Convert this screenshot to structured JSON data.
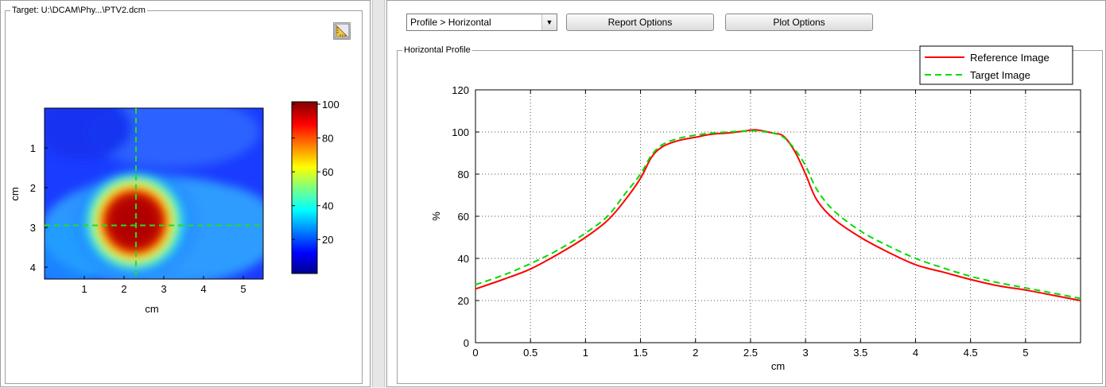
{
  "left_panel": {
    "group_title": "Target: U:\\DCAM\\Phy...\\PTV2.dcm",
    "tool_icon": "ruler-triangle-icon",
    "heatmap": {
      "xlabel": "cm",
      "ylabel": "cm",
      "x_ticks": [
        "1",
        "2",
        "3",
        "4",
        "5"
      ],
      "y_ticks": [
        "1",
        "2",
        "3",
        "4"
      ],
      "colorbar_ticks": [
        "100",
        "80",
        "60",
        "40",
        "20"
      ],
      "crosshair_x_cm": 2.3,
      "crosshair_y_cm": 2.95
    }
  },
  "right_panel": {
    "profile_select": {
      "value": "Profile > Horizontal"
    },
    "report_options_label": "Report Options",
    "plot_options_label": "Plot Options",
    "group_title": "Horizontal Profile"
  },
  "chart_data": {
    "type": "line",
    "xlabel": "cm",
    "ylabel": "%",
    "xlim": [
      0,
      5.5
    ],
    "ylim": [
      0,
      120
    ],
    "x_ticks": [
      "0",
      "0.5",
      "1",
      "1.5",
      "2",
      "2.5",
      "3",
      "3.5",
      "4",
      "4.5",
      "5"
    ],
    "y_ticks": [
      "0",
      "20",
      "40",
      "60",
      "80",
      "100",
      "120"
    ],
    "grid": true,
    "legend": "top-right",
    "colors": {
      "reference": "#ff0000",
      "target": "#00dd00"
    },
    "series": [
      {
        "name": "Reference Image",
        "style": "solid",
        "x": [
          0,
          0.25,
          0.5,
          0.75,
          1.0,
          1.2,
          1.35,
          1.5,
          1.6,
          1.7,
          1.85,
          2.0,
          2.15,
          2.3,
          2.45,
          2.55,
          2.7,
          2.8,
          2.9,
          3.0,
          3.1,
          3.25,
          3.5,
          3.75,
          4.0,
          4.25,
          4.5,
          4.75,
          5.0,
          5.25,
          5.5
        ],
        "values": [
          25.5,
          30,
          35,
          42,
          50,
          58,
          67,
          78,
          88,
          93,
          96,
          97.5,
          99,
          99.5,
          100.5,
          101,
          99.5,
          98,
          91,
          80,
          68,
          59,
          50,
          43,
          37,
          33.5,
          30,
          27,
          25,
          22.5,
          20
        ]
      },
      {
        "name": "Target Image",
        "style": "dashed",
        "x": [
          0,
          0.25,
          0.5,
          0.75,
          1.0,
          1.2,
          1.35,
          1.5,
          1.6,
          1.7,
          1.85,
          2.0,
          2.15,
          2.3,
          2.45,
          2.55,
          2.7,
          2.8,
          2.9,
          3.0,
          3.1,
          3.25,
          3.5,
          3.75,
          4.0,
          4.25,
          4.5,
          4.75,
          5.0,
          5.25,
          5.5
        ],
        "values": [
          27.5,
          32,
          37.5,
          44,
          52,
          60,
          70,
          80,
          89,
          94,
          97,
          98.5,
          99.5,
          100,
          100.5,
          100.5,
          99.5,
          97.5,
          92,
          84,
          73,
          63,
          53,
          46,
          40,
          35.5,
          31.5,
          28.5,
          26,
          23.5,
          21
        ]
      }
    ]
  }
}
